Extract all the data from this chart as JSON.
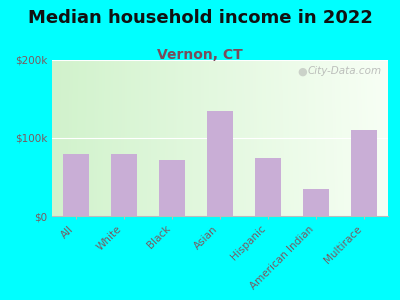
{
  "title": "Median household income in 2022",
  "subtitle": "Vernon, CT",
  "categories": [
    "All",
    "White",
    "Black",
    "Asian",
    "Hispanic",
    "American Indian",
    "Multirace"
  ],
  "values": [
    80000,
    80000,
    72000,
    135000,
    75000,
    35000,
    110000
  ],
  "bar_color": "#c9aed6",
  "background_color": "#00ffff",
  "title_color": "#111111",
  "subtitle_color": "#7a4a5a",
  "tick_label_color": "#7a5a60",
  "ylim": [
    0,
    200000
  ],
  "yticks": [
    0,
    100000,
    200000
  ],
  "ytick_labels": [
    "$0",
    "$100k",
    "$200k"
  ],
  "watermark": "City-Data.com",
  "title_fontsize": 13,
  "subtitle_fontsize": 10,
  "tick_fontsize": 7.5
}
